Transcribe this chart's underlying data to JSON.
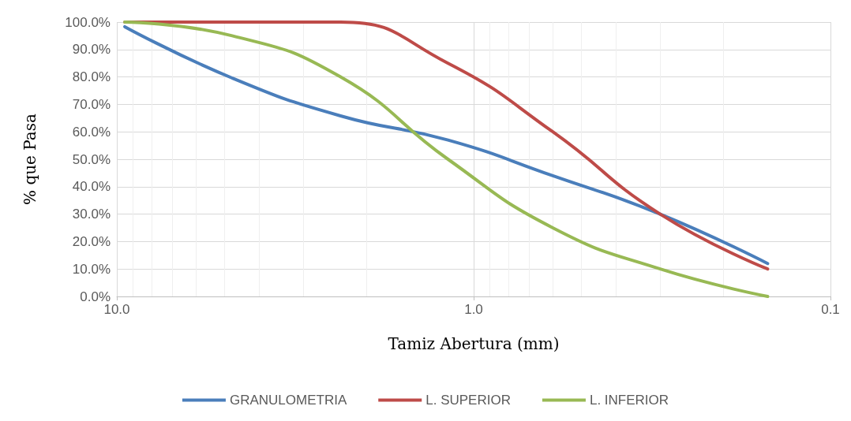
{
  "chart_data": {
    "type": "line",
    "xlabel": "Tamiz Abertura (mm)",
    "ylabel": "% que Pasa",
    "x": [
      9.5,
      4.75,
      2.36,
      1.18,
      0.6,
      0.3,
      0.15
    ],
    "series": [
      {
        "name": "GRANULOMETRIA",
        "color": "#4a7ebb",
        "values": [
          98.3,
          79.6,
          65.8,
          57,
          44,
          30,
          12
        ]
      },
      {
        "name": "L. SUPERIOR",
        "color": "#be4b48",
        "values": [
          100,
          100,
          100,
          85,
          60,
          30,
          10
        ]
      },
      {
        "name": "L. INFERIOR",
        "color": "#98b954",
        "values": [
          100,
          95,
          80,
          50,
          25,
          10,
          0
        ]
      }
    ],
    "log": "x",
    "xlim": [
      10,
      0.1
    ],
    "xticks": [
      {
        "value": 10,
        "label": "10.0"
      },
      {
        "value": 1,
        "label": "1.0"
      },
      {
        "value": 0.1,
        "label": "0.1"
      }
    ],
    "ylim": [
      0,
      100
    ],
    "yticks": [
      {
        "value": 0,
        "label": "0.0%"
      },
      {
        "value": 10,
        "label": "10.0%"
      },
      {
        "value": 20,
        "label": "20.0%"
      },
      {
        "value": 30,
        "label": "30.0%"
      },
      {
        "value": 40,
        "label": "40.0%"
      },
      {
        "value": 50,
        "label": "50.0%"
      },
      {
        "value": 60,
        "label": "60.0%"
      },
      {
        "value": 70,
        "label": "70.0%"
      },
      {
        "value": 80,
        "label": "80.0%"
      },
      {
        "value": 90,
        "label": "90.0%"
      },
      {
        "value": 100,
        "label": "100.0%"
      }
    ],
    "grid": true,
    "legend": "bottom",
    "marker": "none",
    "line_style": "solid"
  }
}
